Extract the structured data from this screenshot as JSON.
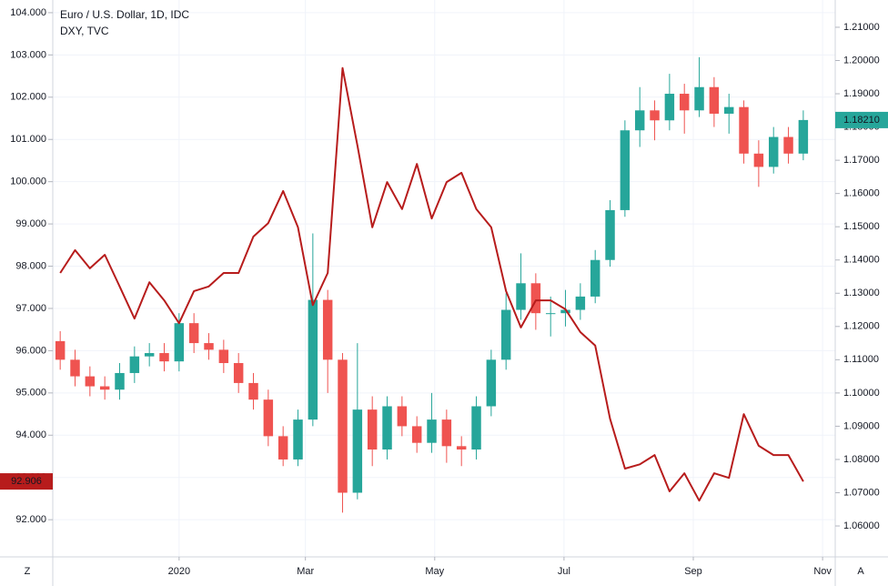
{
  "chart_data": {
    "type": "candlestick",
    "x": [
      0.5,
      1.5,
      2.5,
      3.5,
      4.5,
      5.5,
      6.5,
      7.5,
      8.5,
      9.5,
      10.5,
      11.5,
      12.5,
      13.5,
      14.5,
      15.5,
      16.5,
      17.5,
      18.5,
      19.5,
      20.5,
      21.5,
      22.5,
      23.5,
      24.5,
      25.5,
      26.5,
      27.5,
      28.5,
      29.5,
      30.5,
      31.5,
      32.5,
      33.5,
      34.5,
      35.5,
      36.5,
      37.5,
      38.5,
      39.5,
      40.5,
      41.5,
      42.5,
      43.5,
      44.5,
      45.5,
      46.5,
      47.5,
      48.5,
      49.5,
      50.5
    ],
    "xlim": [
      0,
      52.65
    ],
    "xticks": [
      {
        "value": 8.5,
        "label": "2020"
      },
      {
        "value": 17.0,
        "label": "Mar"
      },
      {
        "value": 25.7,
        "label": "May"
      },
      {
        "value": 34.4,
        "label": "Jul"
      },
      {
        "value": 43.1,
        "label": "Sep"
      },
      {
        "value": 51.8,
        "label": "Nov"
      }
    ],
    "ylim": [
      91.12,
      104.3
    ],
    "yticks": [
      {
        "value": 92,
        "label": "92.000"
      },
      {
        "value": 93,
        "label": "93.000"
      },
      {
        "value": 94,
        "label": "94.000"
      },
      {
        "value": 95,
        "label": "95.000"
      },
      {
        "value": 96,
        "label": "96.000"
      },
      {
        "value": 97,
        "label": "97.000"
      },
      {
        "value": 98,
        "label": "98.000"
      },
      {
        "value": 99,
        "label": "99.000"
      },
      {
        "value": 100,
        "label": "100.000"
      },
      {
        "value": 101,
        "label": "101.000"
      },
      {
        "value": 102,
        "label": "102.000"
      },
      {
        "value": 103,
        "label": "103.000"
      },
      {
        "value": 104,
        "label": "104.000"
      }
    ],
    "y2lim": [
      1.0507,
      1.2182
    ],
    "y2ticks": [
      {
        "value": 1.06,
        "label": "1.06000"
      },
      {
        "value": 1.07,
        "label": "1.07000"
      },
      {
        "value": 1.08,
        "label": "1.08000"
      },
      {
        "value": 1.09,
        "label": "1.09000"
      },
      {
        "value": 1.1,
        "label": "1.10000"
      },
      {
        "value": 1.11,
        "label": "1.11000"
      },
      {
        "value": 1.12,
        "label": "1.12000"
      },
      {
        "value": 1.13,
        "label": "1.13000"
      },
      {
        "value": 1.14,
        "label": "1.14000"
      },
      {
        "value": 1.15,
        "label": "1.15000"
      },
      {
        "value": 1.16,
        "label": "1.16000"
      },
      {
        "value": 1.17,
        "label": "1.17000"
      },
      {
        "value": 1.18,
        "label": "1.18000"
      },
      {
        "value": 1.19,
        "label": "1.19000"
      },
      {
        "value": 1.2,
        "label": "1.20000"
      },
      {
        "value": 1.21,
        "label": "1.21000"
      }
    ],
    "grid": true,
    "series": [
      {
        "name": "Euro / U.S. Dollar, 1D, IDC",
        "type": "candlestick",
        "axis": "y2",
        "up_color": "#26a69a",
        "down_color": "#ef5350",
        "open": [
          1.1156,
          1.11,
          1.105,
          1.102,
          1.101,
          1.106,
          1.111,
          1.112,
          1.1095,
          1.121,
          1.115,
          1.113,
          1.109,
          1.103,
          1.098,
          1.087,
          1.08,
          1.092,
          1.128,
          1.11,
          1.07,
          1.095,
          1.083,
          1.096,
          1.09,
          1.085,
          1.092,
          1.084,
          1.083,
          1.096,
          1.11,
          1.125,
          1.133,
          1.124,
          1.124,
          1.125,
          1.129,
          1.14,
          1.155,
          1.179,
          1.185,
          1.182,
          1.19,
          1.185,
          1.192,
          1.184,
          1.186,
          1.172,
          1.168,
          1.177,
          1.172
        ],
        "high": [
          1.1186,
          1.113,
          1.108,
          1.105,
          1.109,
          1.114,
          1.115,
          1.115,
          1.124,
          1.124,
          1.118,
          1.116,
          1.112,
          1.106,
          1.101,
          1.09,
          1.095,
          1.148,
          1.131,
          1.112,
          1.115,
          1.099,
          1.099,
          1.099,
          1.093,
          1.1,
          1.095,
          1.087,
          1.099,
          1.113,
          1.13,
          1.142,
          1.136,
          1.129,
          1.131,
          1.133,
          1.143,
          1.158,
          1.182,
          1.192,
          1.188,
          1.196,
          1.193,
          1.201,
          1.195,
          1.19,
          1.188,
          1.176,
          1.18,
          1.18,
          1.185
        ],
        "low": [
          1.107,
          1.102,
          1.099,
          1.098,
          1.098,
          1.103,
          1.108,
          1.1065,
          1.1065,
          1.112,
          1.11,
          1.106,
          1.1,
          1.095,
          1.084,
          1.078,
          1.078,
          1.09,
          1.1,
          1.064,
          1.068,
          1.078,
          1.08,
          1.087,
          1.082,
          1.082,
          1.079,
          1.078,
          1.08,
          1.093,
          1.107,
          1.122,
          1.119,
          1.117,
          1.12,
          1.122,
          1.127,
          1.138,
          1.153,
          1.174,
          1.176,
          1.179,
          1.178,
          1.183,
          1.18,
          1.178,
          1.169,
          1.162,
          1.166,
          1.169,
          1.17
        ],
        "close": [
          1.11,
          1.105,
          1.102,
          1.101,
          1.106,
          1.111,
          1.112,
          1.1095,
          1.121,
          1.115,
          1.113,
          1.109,
          1.103,
          1.098,
          1.087,
          1.08,
          1.092,
          1.128,
          1.11,
          1.07,
          1.095,
          1.083,
          1.096,
          1.09,
          1.085,
          1.092,
          1.084,
          1.083,
          1.096,
          1.11,
          1.125,
          1.133,
          1.124,
          1.124,
          1.125,
          1.129,
          1.14,
          1.155,
          1.179,
          1.185,
          1.182,
          1.19,
          1.185,
          1.192,
          1.184,
          1.186,
          1.172,
          1.168,
          1.177,
          1.172,
          1.1821
        ],
        "last_value_label": "1.18210"
      },
      {
        "name": "DXY, TVC",
        "type": "line",
        "axis": "y",
        "color": "#b71c1c",
        "values": [
          97.84,
          98.38,
          97.95,
          98.27,
          97.52,
          96.76,
          97.62,
          97.19,
          96.65,
          97.41,
          97.52,
          97.84,
          97.84,
          98.7,
          99.02,
          99.78,
          98.92,
          97.08,
          97.84,
          102.69,
          100.85,
          98.92,
          99.99,
          99.35,
          100.42,
          99.13,
          99.99,
          100.21,
          99.35,
          98.92,
          97.41,
          96.55,
          97.19,
          97.19,
          96.98,
          96.44,
          96.12,
          94.39,
          93.21,
          93.31,
          93.53,
          92.67,
          93.1,
          92.45,
          93.1,
          92.99,
          94.5,
          93.75,
          93.53,
          93.53,
          92.906
        ],
        "last_value_label": "92.906"
      }
    ]
  },
  "controls": {
    "left": "Z",
    "right": "A"
  }
}
